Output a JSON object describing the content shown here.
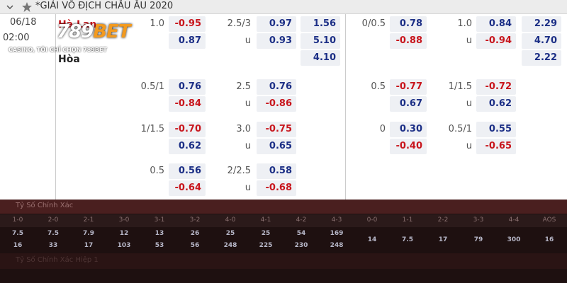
{
  "header": {
    "title": "*GIẢI VÔ ĐỊCH CHÂU ÂU 2020"
  },
  "match": {
    "date": "06/18",
    "time": "02:00",
    "home": "Hà Lan",
    "draw": "Hòa"
  },
  "logo": {
    "number": "789",
    "word": "BET",
    "slogan": "CASINO, TÔI CHỈ CHỌN 789BET"
  },
  "under_label": "u",
  "markets": [
    {
      "x12": [
        "1.56",
        "5.10",
        "4.10"
      ],
      "groups": [
        {
          "hdp": "1.0",
          "home": "-0.95",
          "away": "0.87",
          "ou": "2.5/3",
          "over": "0.97",
          "under": "0.93"
        },
        {
          "hdp": "0.5/1",
          "home": "0.76",
          "away": "-0.84",
          "ou": "2.5",
          "over": "0.76",
          "under": "-0.86"
        },
        {
          "hdp": "1/1.5",
          "home": "-0.70",
          "away": "0.62",
          "ou": "3.0",
          "over": "-0.75",
          "under": "0.65"
        },
        {
          "hdp": "0.5",
          "home": "0.56",
          "away": "-0.64",
          "ou": "2/2.5",
          "over": "0.58",
          "under": "-0.68"
        }
      ]
    },
    {
      "x12": [
        "2.29",
        "4.70",
        "2.22"
      ],
      "groups": [
        {
          "hdp": "0/0.5",
          "home": "0.78",
          "away": "-0.88",
          "ou": "1.0",
          "over": "0.84",
          "under": "-0.94"
        },
        {
          "hdp": "0.5",
          "home": "-0.77",
          "away": "0.67",
          "ou": "1/1.5",
          "over": "-0.72",
          "under": "0.62"
        },
        {
          "hdp": "0",
          "home": "0.30",
          "away": "-0.40",
          "ou": "0.5/1",
          "over": "0.55",
          "under": "-0.65"
        }
      ]
    }
  ],
  "correct_score": {
    "title": "Tỷ Số Chính Xác",
    "scores": [
      "1-0",
      "2-0",
      "2-1",
      "3-0",
      "3-1",
      "3-2",
      "4-0",
      "4-1",
      "4-2",
      "4-3",
      "0-0",
      "1-1",
      "2-2",
      "3-3",
      "4-4",
      "AOS"
    ],
    "home_odds": [
      "7.5",
      "7.5",
      "7.9",
      "12",
      "13",
      "26",
      "25",
      "25",
      "54",
      "169"
    ],
    "away_odds": [
      "16",
      "33",
      "17",
      "103",
      "53",
      "56",
      "248",
      "225",
      "230",
      "248"
    ],
    "single_odds": [
      "14",
      "7.5",
      "17",
      "79",
      "300",
      "16"
    ]
  },
  "first_half_title": "Tỷ Số Chính Xác Hiệp 1"
}
